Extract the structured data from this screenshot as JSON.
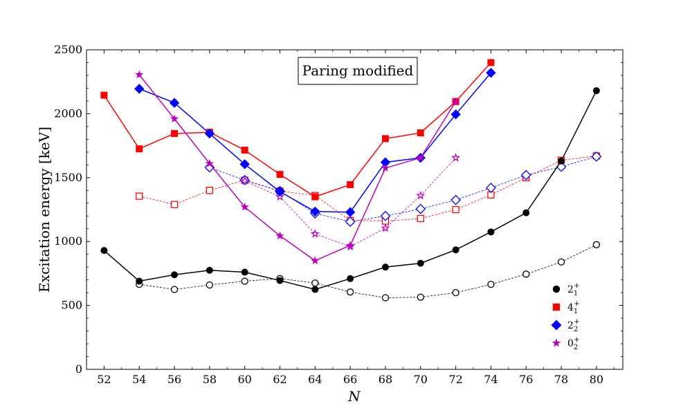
{
  "chart_data": {
    "type": "line",
    "title": "Paring modified",
    "xlabel": "N",
    "ylabel": "Excitation energy [keV]",
    "xlim": [
      51,
      81.5
    ],
    "ylim": [
      0,
      2500
    ],
    "xticks": [
      52,
      54,
      56,
      58,
      60,
      62,
      64,
      66,
      68,
      70,
      72,
      74,
      76,
      78,
      80
    ],
    "yticks": [
      0,
      500,
      1000,
      1500,
      2000,
      2500
    ],
    "legend_position": "lower-right",
    "series": [
      {
        "name": "2_1^+",
        "label_base": "2",
        "label_sub": "1",
        "label_sup": "+",
        "marker": "circle",
        "color": "#000000",
        "filled": true,
        "line": "solid",
        "legend": true,
        "x": [
          52,
          54,
          56,
          58,
          60,
          62,
          64,
          66,
          68,
          70,
          72,
          74,
          76,
          78,
          80
        ],
        "y": [
          930,
          690,
          740,
          775,
          760,
          695,
          625,
          710,
          800,
          830,
          935,
          1075,
          1225,
          1630,
          2180
        ]
      },
      {
        "name": "2_1^+ (open)",
        "marker": "circle",
        "color": "#000000",
        "filled": false,
        "line": "dashed",
        "legend": false,
        "x": [
          54,
          56,
          58,
          60,
          62,
          64,
          66,
          68,
          70,
          72,
          74,
          76,
          78,
          80
        ],
        "y": [
          665,
          625,
          660,
          690,
          710,
          675,
          605,
          560,
          565,
          600,
          665,
          745,
          840,
          975
        ]
      },
      {
        "name": "4_1^+",
        "label_base": "4",
        "label_sub": "1",
        "label_sup": "+",
        "marker": "square",
        "color": "#ff0000",
        "filled": true,
        "line": "solid",
        "legend": true,
        "x": [
          52,
          54,
          56,
          58,
          60,
          62,
          64,
          66,
          68,
          70,
          72,
          74
        ],
        "y": [
          2145,
          1725,
          1845,
          1855,
          1715,
          1525,
          1350,
          1445,
          1805,
          1850,
          2095,
          2400
        ]
      },
      {
        "name": "4_1^+ (open)",
        "marker": "square",
        "color": "#ff0000",
        "filled": false,
        "line": "dashed",
        "legend": false,
        "x": [
          54,
          56,
          58,
          60,
          62,
          64,
          66,
          68,
          70,
          72,
          74,
          76,
          78,
          80
        ],
        "y": [
          1355,
          1290,
          1400,
          1480,
          1395,
          1360,
          1165,
          1160,
          1180,
          1250,
          1365,
          1500,
          1635,
          1670
        ]
      },
      {
        "name": "2_2^+",
        "label_base": "2",
        "label_sub": "2",
        "label_sup": "+",
        "marker": "diamond",
        "color": "#0000ff",
        "filled": true,
        "line": "solid",
        "legend": true,
        "x": [
          54,
          56,
          58,
          60,
          62,
          64,
          66,
          68,
          70,
          72,
          74
        ],
        "y": [
          2195,
          2085,
          1845,
          1605,
          1390,
          1235,
          1230,
          1620,
          1655,
          1995,
          2320
        ]
      },
      {
        "name": "2_2^+ (open)",
        "marker": "diamond",
        "color": "#0000ff",
        "filled": false,
        "line": "dashed",
        "legend": false,
        "x": [
          58,
          60,
          62,
          64,
          66,
          68,
          70,
          72,
          74,
          76,
          78,
          80
        ],
        "y": [
          1580,
          1480,
          1395,
          1220,
          1155,
          1200,
          1255,
          1325,
          1420,
          1520,
          1585,
          1665
        ]
      },
      {
        "name": "0_2^+",
        "label_base": "0",
        "label_sub": "2",
        "label_sup": "+",
        "marker": "star",
        "color": "#bb00bb",
        "filled": true,
        "line": "solid",
        "legend": true,
        "x": [
          54,
          56,
          58,
          60,
          62,
          64,
          66,
          68,
          70,
          72
        ],
        "y": [
          2305,
          1960,
          1610,
          1270,
          1045,
          850,
          970,
          1575,
          1655,
          2095
        ]
      },
      {
        "name": "0_2^+ (open)",
        "marker": "star",
        "color": "#bb00bb",
        "filled": false,
        "line": "dashed",
        "legend": false,
        "x": [
          60,
          62,
          64,
          66,
          68,
          70,
          72
        ],
        "y": [
          1475,
          1350,
          1060,
          960,
          1105,
          1360,
          1655
        ]
      }
    ]
  }
}
